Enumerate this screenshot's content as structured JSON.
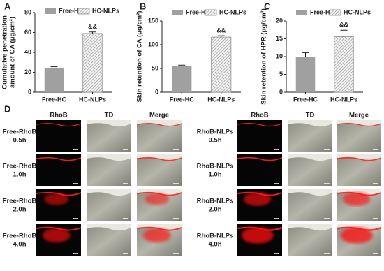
{
  "chart_data": [
    {
      "type": "bar",
      "label": "A",
      "ylabel": [
        "Cumulative penetration",
        "amount of CA (μg/cm²)"
      ],
      "categories": [
        "Free-HC",
        "HC-NLPs"
      ],
      "values": [
        24.5,
        59
      ],
      "errors": [
        1,
        1.5
      ],
      "colors": [
        "#a0a0a0",
        "#8c8c8c"
      ],
      "hatch": [
        false,
        true
      ],
      "annotation": "&&",
      "ylim": [
        0,
        80
      ],
      "yticks": [
        0,
        20,
        40,
        60,
        80
      ]
    },
    {
      "type": "bar",
      "label": "B",
      "ylabel": "Skin retention of CA (μg/cm²)",
      "categories": [
        "Free-HC",
        "HC-NLPs"
      ],
      "values": [
        55,
        116
      ],
      "errors": [
        2,
        3
      ],
      "colors": [
        "#a0a0a0",
        "#8c8c8c"
      ],
      "hatch": [
        false,
        true
      ],
      "annotation": "&&",
      "ylim": [
        0,
        150
      ],
      "yticks": [
        0,
        50,
        100,
        150
      ]
    },
    {
      "type": "bar",
      "label": "C",
      "ylabel": "Skin retention of HPR (μg/cm²)",
      "categories": [
        "Free-HC",
        "HC-NLPs"
      ],
      "values": [
        9.8,
        15.6
      ],
      "errors": [
        1.3,
        1.8
      ],
      "colors": [
        "#a0a0a0",
        "#8c8c8c"
      ],
      "hatch": [
        false,
        true
      ],
      "annotation": "&&",
      "ylim": [
        0,
        20
      ],
      "yticks": [
        0,
        5,
        10,
        15,
        20
      ]
    }
  ],
  "panel_d": {
    "label": "D",
    "columns": [
      "RhoB",
      "TD",
      "Merge"
    ],
    "left_rows": [
      [
        "Free-RhoB",
        "0.5h"
      ],
      [
        "Free-RhoB",
        "1.0h"
      ],
      [
        "Free-RhoB",
        "2.0h"
      ],
      [
        "Free-RhoB",
        "4.0h"
      ]
    ],
    "right_rows": [
      [
        "RhoB-NLPs",
        "0.5h"
      ],
      [
        "RhoB-NLPs",
        "1.0h"
      ],
      [
        "RhoB-NLPs",
        "2.0h"
      ],
      [
        "RhoB-NLPs",
        "4.0h"
      ]
    ]
  }
}
